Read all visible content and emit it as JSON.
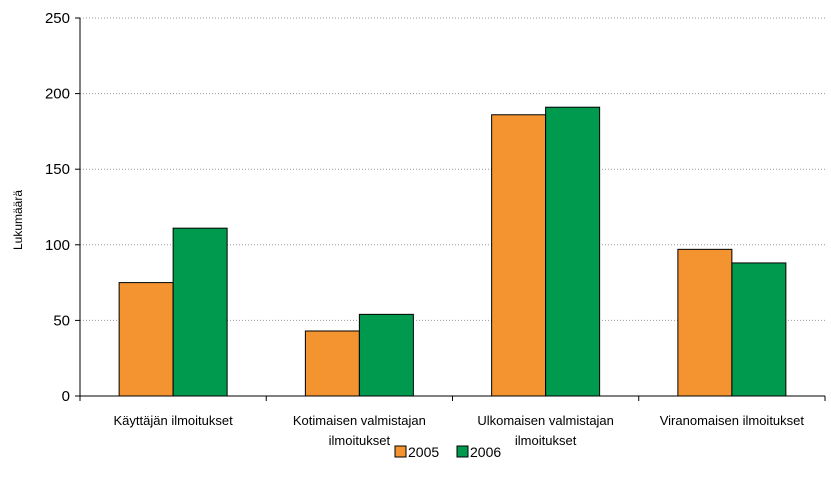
{
  "chart_data": {
    "type": "bar",
    "title": "",
    "xlabel": "",
    "ylabel": "Lukumäärä",
    "ylim": [
      0,
      250
    ],
    "yticks": [
      0,
      50,
      100,
      150,
      200,
      250
    ],
    "grid": true,
    "legend_position": "bottom",
    "categories": [
      [
        "Käyttäjän ilmoitukset"
      ],
      [
        "Kotimaisen valmistajan",
        "ilmoitukset"
      ],
      [
        "Ulkomaisen valmistajan",
        "ilmoitukset"
      ],
      [
        "Viranomaisen ilmoitukset"
      ]
    ],
    "series": [
      {
        "name": "2005",
        "color": "#F39430",
        "values": [
          75,
          43,
          186,
          97
        ]
      },
      {
        "name": "2006",
        "color": "#009A4E",
        "values": [
          111,
          54,
          191,
          88
        ]
      }
    ]
  }
}
